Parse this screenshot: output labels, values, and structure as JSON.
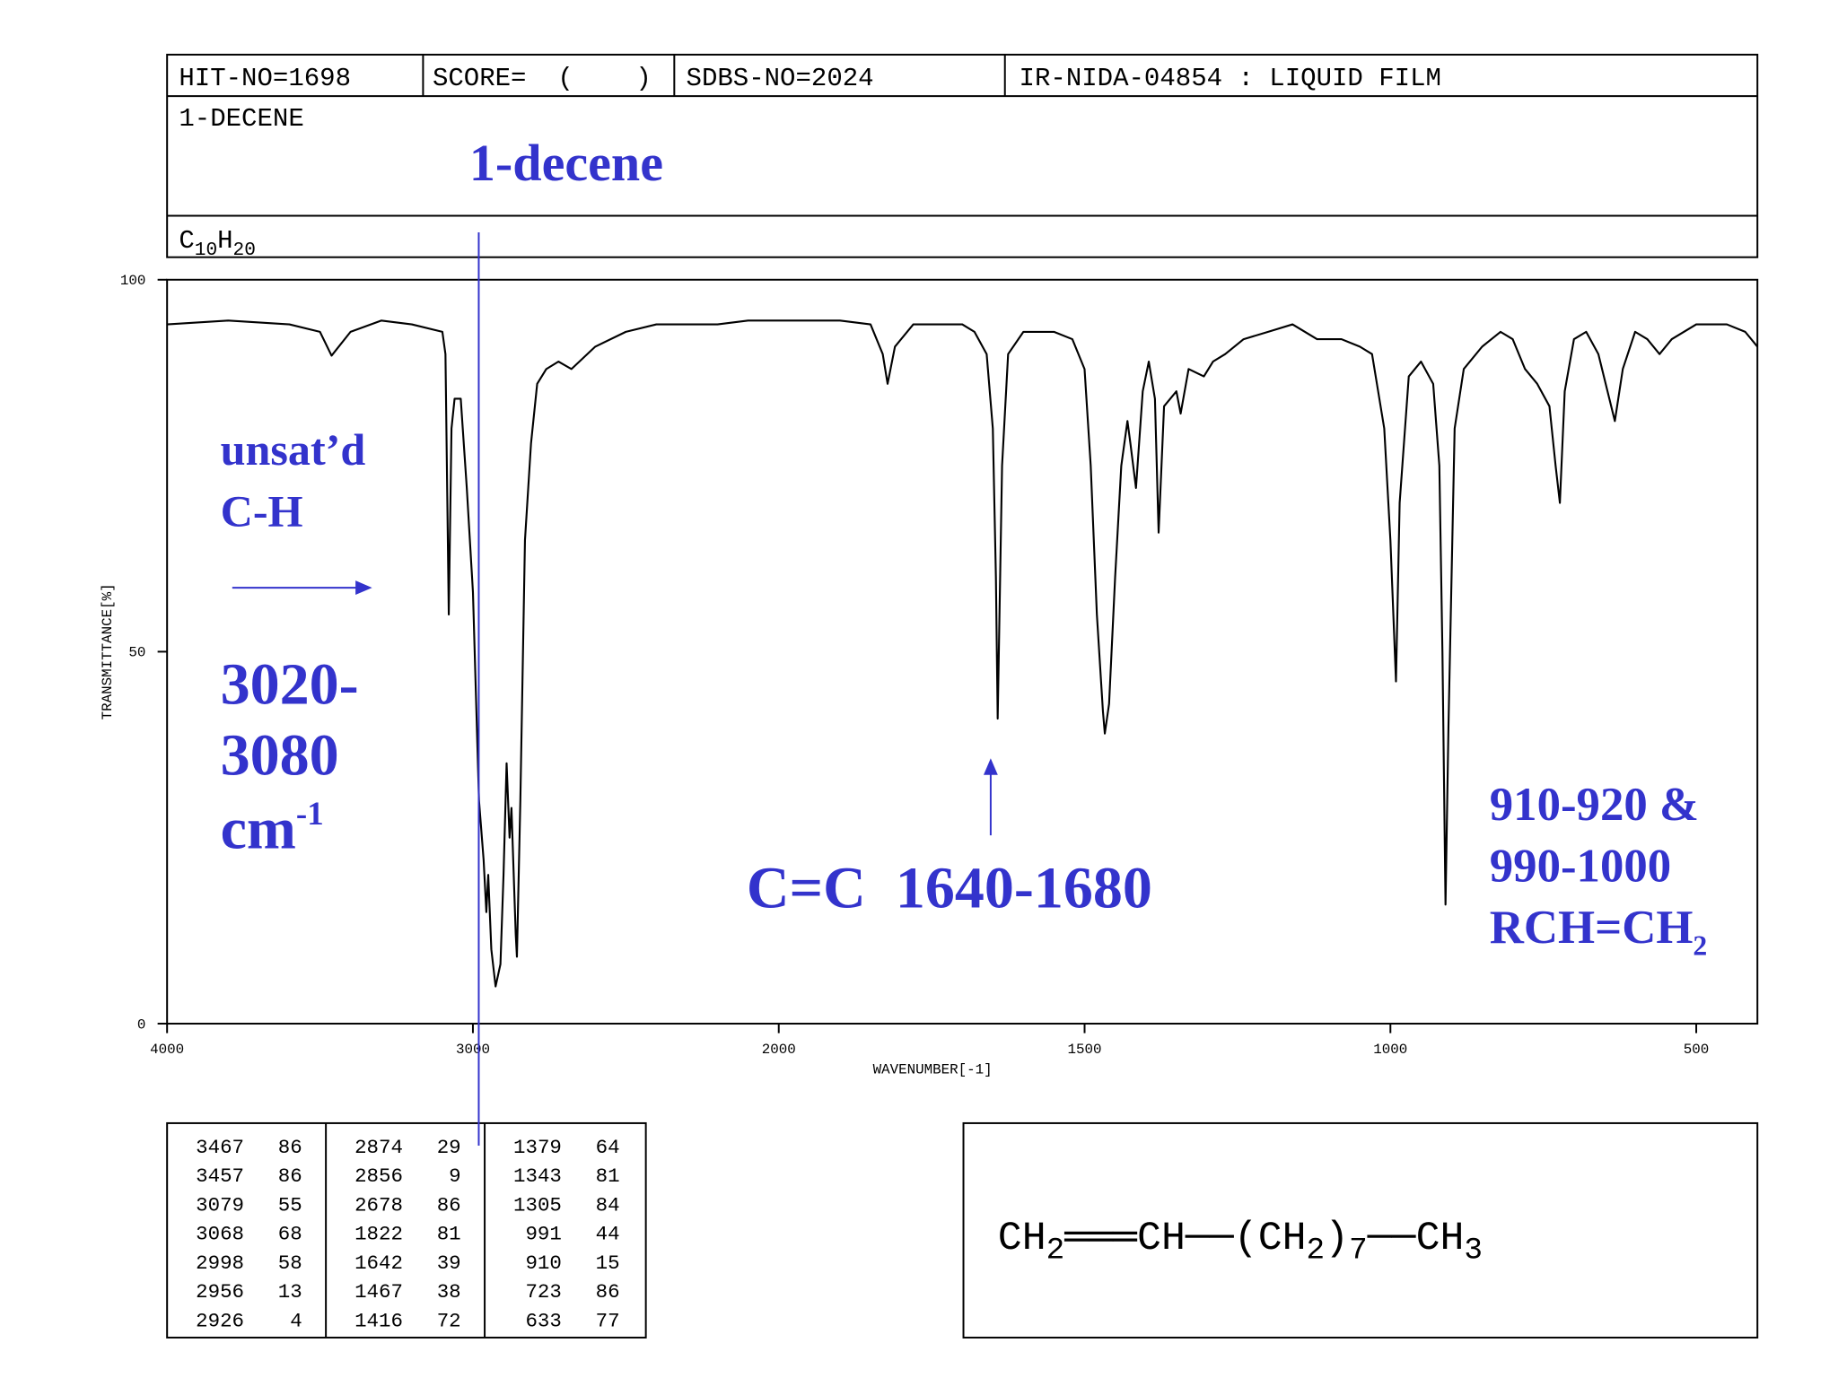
{
  "header": {
    "hit_no": "HIT-NO=1698",
    "score": "SCORE=  (    )",
    "sdbs_no": "SDBS-NO=2024",
    "source": "IR-NIDA-04854 : LIQUID FILM",
    "name": "1-DECENE",
    "formula": [
      "C",
      "10",
      "H",
      "20"
    ]
  },
  "chart_data": {
    "type": "line",
    "color": "#000000",
    "xlabel": "WAVENUMBER[-1]",
    "ylabel": "TRANSMITTANCE[%]",
    "xlim": [
      4000,
      400
    ],
    "xticks": [
      4000,
      3000,
      2000,
      1500,
      1000,
      500
    ],
    "xscale": {
      "break": 2000,
      "factor": 2
    },
    "ylim": [
      0,
      100
    ],
    "yticks": [
      0,
      50,
      100
    ],
    "x": [
      4000,
      3800,
      3600,
      3500,
      3462,
      3400,
      3300,
      3200,
      3100,
      3090,
      3079,
      3070,
      3060,
      3040,
      3020,
      3000,
      2980,
      2965,
      2956,
      2950,
      2940,
      2926,
      2910,
      2900,
      2890,
      2880,
      2874,
      2860,
      2856,
      2845,
      2830,
      2810,
      2790,
      2760,
      2720,
      2678,
      2600,
      2500,
      2400,
      2200,
      2100,
      2000,
      1900,
      1850,
      1830,
      1822,
      1810,
      1780,
      1700,
      1680,
      1660,
      1650,
      1645,
      1642,
      1635,
      1625,
      1600,
      1550,
      1520,
      1500,
      1490,
      1480,
      1470,
      1467,
      1460,
      1450,
      1440,
      1430,
      1425,
      1416,
      1405,
      1395,
      1385,
      1379,
      1370,
      1350,
      1343,
      1330,
      1305,
      1290,
      1270,
      1240,
      1200,
      1160,
      1120,
      1080,
      1050,
      1030,
      1010,
      1000,
      991,
      985,
      970,
      950,
      930,
      920,
      915,
      910,
      905,
      895,
      880,
      850,
      820,
      800,
      780,
      760,
      740,
      730,
      723,
      715,
      700,
      680,
      660,
      645,
      633,
      620,
      600,
      580,
      560,
      540,
      500,
      450,
      420,
      400
    ],
    "values": [
      94,
      94.5,
      94,
      93,
      89.8,
      93,
      94.5,
      94,
      93,
      90,
      55,
      80,
      84,
      84,
      72,
      58,
      30,
      22,
      15,
      20,
      10,
      5,
      8,
      20,
      35,
      25,
      29,
      12,
      9,
      30,
      65,
      78,
      86,
      88,
      89,
      88,
      91,
      93,
      94,
      94,
      94.5,
      94.5,
      94.5,
      94,
      90,
      86,
      91,
      94,
      94,
      93,
      90,
      80,
      60,
      41,
      75,
      90,
      93,
      93,
      92,
      88,
      75,
      55,
      42,
      39,
      43,
      60,
      75,
      81,
      78,
      72,
      85,
      89,
      84,
      66,
      83,
      85,
      82,
      88,
      87,
      89,
      90,
      92,
      93,
      94,
      92,
      92,
      91,
      90,
      80,
      65,
      46,
      70,
      87,
      89,
      86,
      75,
      50,
      16,
      40,
      80,
      88,
      91,
      93,
      92,
      88,
      86,
      83,
      75,
      70,
      85,
      92,
      93,
      90,
      85,
      81,
      88,
      93,
      92,
      90,
      92,
      94,
      94,
      93,
      91
    ]
  },
  "peak_table": [
    [
      3467,
      86
    ],
    [
      3457,
      86
    ],
    [
      3079,
      55
    ],
    [
      3068,
      68
    ],
    [
      2998,
      58
    ],
    [
      2956,
      13
    ],
    [
      2926,
      4
    ],
    [
      2874,
      29
    ],
    [
      2856,
      9
    ],
    [
      2678,
      86
    ],
    [
      1822,
      81
    ],
    [
      1642,
      39
    ],
    [
      1467,
      38
    ],
    [
      1416,
      72
    ],
    [
      1379,
      64
    ],
    [
      1343,
      81
    ],
    [
      1305,
      84
    ],
    [
      991,
      44
    ],
    [
      910,
      15
    ],
    [
      723,
      86
    ],
    [
      633,
      77
    ]
  ],
  "structure": [
    "CH",
    "2",
    "═══CH──(CH",
    "2",
    ")",
    "7",
    "──CH",
    "3"
  ],
  "annotations": {
    "compound": "1-decene",
    "unsat": [
      "unsat’d",
      "C-H"
    ],
    "range": [
      "3020-",
      "3080",
      "cm",
      "-1"
    ],
    "alkene": "C=C  1640-1680",
    "vinyl": [
      "910-920 &",
      "990-1000",
      "RCH=CH",
      "2"
    ]
  }
}
